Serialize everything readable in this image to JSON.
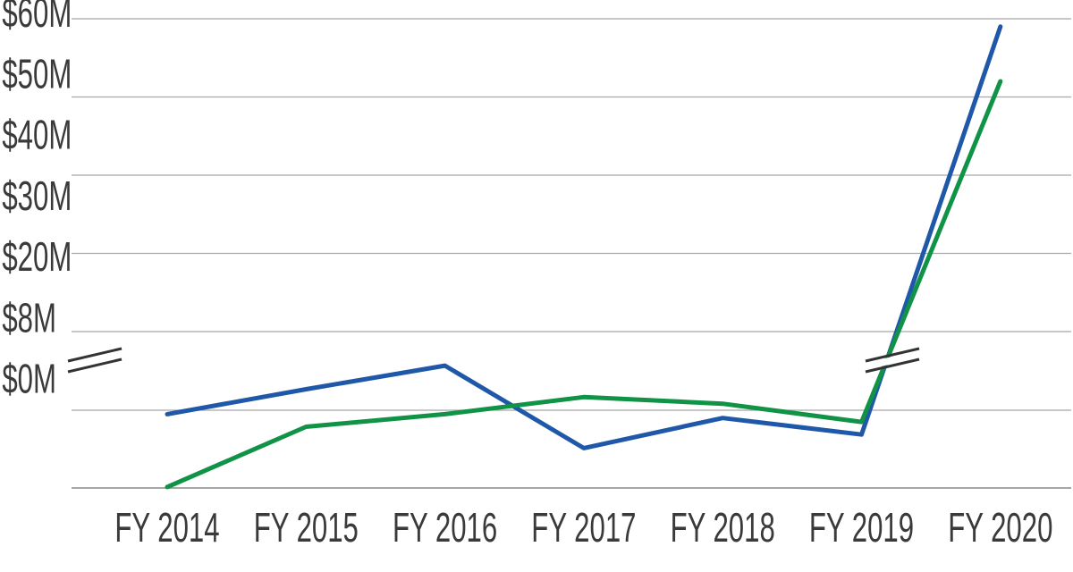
{
  "chart_data": {
    "type": "line",
    "title": "",
    "xlabel": "",
    "ylabel": "",
    "categories": [
      "FY 2014",
      "FY 2015",
      "FY 2016",
      "FY 2017",
      "FY 2018",
      "FY 2019",
      "FY 2020"
    ],
    "y_ticks": [
      {
        "value": 0,
        "label": "$0M"
      },
      {
        "value": 8,
        "label": "$8M"
      },
      {
        "value": 20,
        "label": "$20M"
      },
      {
        "value": 30,
        "label": "$30M"
      },
      {
        "value": 40,
        "label": "$40M"
      },
      {
        "value": 50,
        "label": "$50M"
      },
      {
        "value": 60,
        "label": "$60M"
      }
    ],
    "ylim": [
      0,
      60
    ],
    "axis_break": {
      "lower_max": 8,
      "upper_min": 20,
      "note": "broken y-axis between $8M and $20M"
    },
    "grid": true,
    "legend": "none",
    "series": [
      {
        "color": "#1f58a8",
        "values": [
          7.6,
          11.2,
          14.8,
          4.1,
          7.2,
          5.5,
          59.0
        ]
      },
      {
        "color": "#119347",
        "values": [
          0.1,
          6.3,
          7.6,
          10.0,
          9.0,
          6.8,
          52.0
        ]
      }
    ]
  }
}
